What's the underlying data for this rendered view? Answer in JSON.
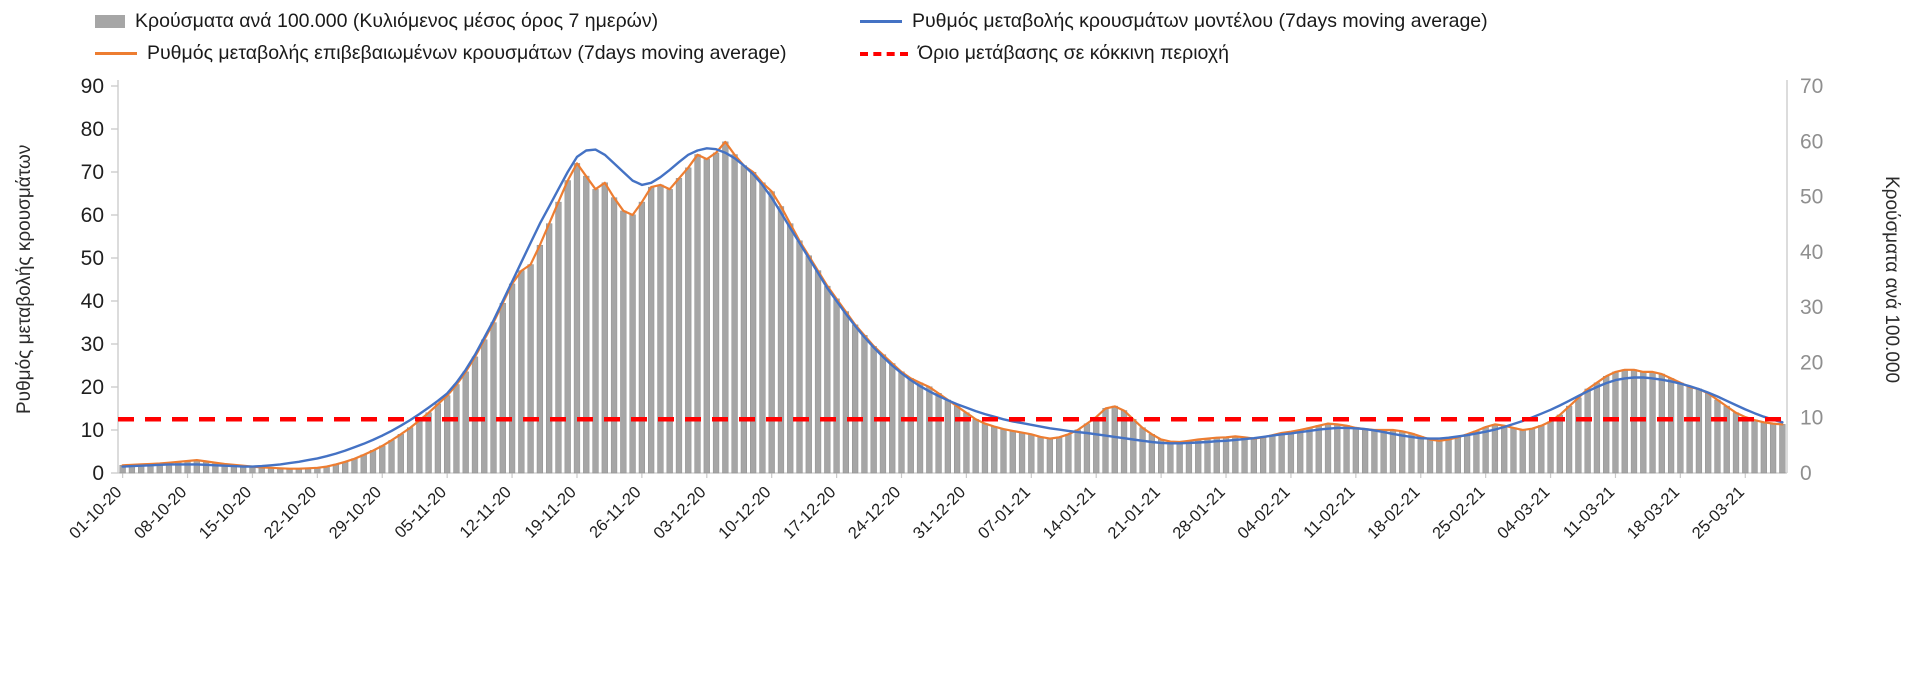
{
  "page": {
    "background": "#ffffff"
  },
  "chart_data": {
    "type": "bar",
    "grid": false,
    "legend_position": "top",
    "n_points": 180,
    "x_start_label": "01-10-20",
    "x_tick_every_days": 7,
    "x_tick_labels": [
      "01-10-20",
      "08-10-20",
      "15-10-20",
      "22-10-20",
      "29-10-20",
      "05-11-20",
      "12-11-20",
      "19-11-20",
      "26-11-20",
      "03-12-20",
      "10-12-20",
      "17-12-20",
      "24-12-20",
      "31-12-20",
      "07-01-21",
      "14-01-21",
      "21-01-21",
      "28-01-21",
      "04-02-21",
      "11-02-21",
      "18-02-21",
      "25-02-21",
      "04-03-21",
      "11-03-21",
      "18-03-21",
      "25-03-21"
    ],
    "left_axis": {
      "title": "Ρυθμός μεταβολής κρουσμάτων",
      "min": 0,
      "max": 90,
      "ticks": [
        0,
        10,
        20,
        30,
        40,
        50,
        60,
        70,
        80,
        90
      ]
    },
    "right_axis": {
      "title": "Κρούσματα ανά 100.000",
      "min": 0,
      "max": 70,
      "ticks": [
        0,
        10,
        20,
        30,
        40,
        50,
        60,
        70
      ]
    },
    "series": [
      {
        "name": "Κρούσματα ανά 100.000 (Κυλιόμενος μέσος όρος 7 ημερών)",
        "kind": "bar",
        "axis": "right",
        "color": "#a6a6a6",
        "values": [
          1.4,
          1.5,
          1.6,
          1.6,
          1.7,
          1.9,
          2.0,
          2.2,
          2.3,
          2.1,
          1.9,
          1.6,
          1.5,
          1.3,
          1.2,
          1.0,
          0.9,
          0.9,
          0.8,
          0.8,
          0.9,
          0.9,
          1.2,
          1.6,
          2.0,
          2.6,
          3.3,
          4.1,
          4.9,
          5.9,
          7.0,
          8.2,
          9.5,
          10.9,
          12.5,
          14.0,
          16.0,
          18.3,
          21.0,
          24.1,
          27.2,
          30.7,
          34.2,
          36.6,
          37.7,
          41.2,
          45.1,
          49.0,
          52.9,
          56.0,
          53.7,
          51.3,
          52.5,
          49.8,
          47.4,
          46.7,
          49.0,
          51.7,
          52.1,
          51.3,
          53.3,
          55.2,
          57.6,
          56.8,
          57.9,
          59.9,
          57.6,
          55.6,
          54.4,
          52.5,
          50.9,
          48.2,
          45.1,
          42.0,
          39.3,
          36.6,
          33.8,
          31.5,
          29.2,
          26.8,
          24.9,
          22.9,
          21.4,
          19.8,
          18.3,
          17.1,
          16.3,
          15.6,
          14.4,
          13.2,
          12.1,
          10.9,
          9.7,
          8.9,
          8.4,
          7.9,
          7.6,
          7.3,
          7.0,
          6.5,
          6.2,
          6.5,
          7.0,
          7.8,
          8.9,
          10.1,
          11.7,
          12.1,
          11.3,
          9.7,
          8.2,
          7.0,
          6.1,
          5.7,
          5.6,
          5.8,
          6.1,
          6.2,
          6.4,
          6.5,
          6.6,
          6.5,
          6.2,
          6.5,
          6.8,
          7.2,
          7.5,
          7.8,
          8.2,
          8.6,
          8.9,
          8.8,
          8.6,
          8.2,
          7.9,
          7.8,
          7.8,
          7.8,
          7.5,
          7.2,
          6.6,
          6.1,
          5.8,
          6.1,
          6.5,
          7.0,
          7.6,
          8.3,
          8.8,
          8.6,
          8.2,
          7.8,
          8.0,
          8.6,
          9.3,
          10.5,
          12.1,
          13.6,
          15.2,
          16.3,
          17.5,
          18.3,
          18.7,
          18.7,
          18.3,
          18.3,
          17.9,
          17.1,
          16.3,
          15.6,
          15.2,
          14.4,
          13.2,
          12.1,
          10.9,
          10.1,
          9.6,
          9.2,
          8.9,
          8.8
        ]
      },
      {
        "name": "Ρυθμός μεταβολής επιβεβαιωμένων κρουσμάτων (7days moving average)",
        "kind": "line",
        "axis": "left",
        "color": "#ed7d31",
        "values": [
          1.8,
          1.9,
          2.0,
          2.1,
          2.2,
          2.4,
          2.6,
          2.8,
          3.0,
          2.7,
          2.4,
          2.1,
          1.9,
          1.7,
          1.5,
          1.3,
          1.2,
          1.1,
          1.0,
          1.0,
          1.1,
          1.2,
          1.5,
          2.0,
          2.6,
          3.3,
          4.2,
          5.2,
          6.3,
          7.6,
          9.0,
          10.5,
          12.2,
          14.0,
          16.0,
          18.0,
          20.5,
          23.5,
          27.0,
          31.0,
          35.0,
          39.5,
          44.0,
          47.0,
          48.5,
          53.0,
          58.0,
          63.0,
          68.0,
          72.0,
          69.0,
          66.0,
          67.5,
          64.0,
          61.0,
          60.0,
          63.0,
          66.5,
          67.0,
          66.0,
          68.5,
          71.0,
          74.0,
          73.0,
          74.5,
          77.0,
          74.0,
          71.5,
          70.0,
          67.5,
          65.5,
          62.0,
          58.0,
          54.0,
          50.5,
          47.0,
          43.5,
          40.5,
          37.5,
          34.5,
          32.0,
          29.5,
          27.5,
          25.5,
          23.5,
          22.0,
          21.0,
          20.0,
          18.5,
          17.0,
          15.5,
          14.0,
          12.5,
          11.5,
          10.8,
          10.2,
          9.8,
          9.4,
          9.0,
          8.4,
          8.0,
          8.3,
          9.0,
          10.0,
          11.5,
          13.0,
          15.0,
          15.5,
          14.5,
          12.5,
          10.5,
          9.0,
          7.8,
          7.3,
          7.2,
          7.5,
          7.8,
          8.0,
          8.2,
          8.3,
          8.5,
          8.3,
          8.0,
          8.3,
          8.8,
          9.3,
          9.6,
          10.0,
          10.5,
          11.0,
          11.5,
          11.3,
          11.0,
          10.5,
          10.2,
          10.0,
          10.0,
          10.0,
          9.7,
          9.2,
          8.5,
          7.8,
          7.5,
          7.8,
          8.3,
          9.0,
          9.8,
          10.7,
          11.3,
          11.0,
          10.5,
          10.0,
          10.3,
          11.0,
          12.0,
          13.5,
          15.5,
          17.5,
          19.5,
          21.0,
          22.5,
          23.5,
          24.0,
          24.0,
          23.5,
          23.5,
          23.0,
          22.0,
          21.0,
          20.0,
          19.5,
          18.5,
          17.0,
          15.5,
          14.0,
          13.0,
          12.3,
          11.8,
          11.5,
          11.3
        ]
      },
      {
        "name": "Ρυθμός μεταβολής κρουσμάτων μοντέλου (7days moving average)",
        "kind": "line",
        "axis": "left",
        "color": "#4472c4",
        "values": [
          1.5,
          1.6,
          1.7,
          1.8,
          1.9,
          2.0,
          2.0,
          2.0,
          2.0,
          1.9,
          1.8,
          1.7,
          1.6,
          1.5,
          1.5,
          1.6,
          1.8,
          2.0,
          2.3,
          2.6,
          3.0,
          3.4,
          3.9,
          4.5,
          5.2,
          6.0,
          6.8,
          7.7,
          8.7,
          9.8,
          11.0,
          12.3,
          13.7,
          15.2,
          16.8,
          18.5,
          21.0,
          24.0,
          27.5,
          31.5,
          35.5,
          40.0,
          44.5,
          49.0,
          53.5,
          58.0,
          62.0,
          66.0,
          70.0,
          73.5,
          75.0,
          75.2,
          74.0,
          72.0,
          70.0,
          68.0,
          67.0,
          67.5,
          68.8,
          70.5,
          72.3,
          74.0,
          75.0,
          75.5,
          75.3,
          74.5,
          73.2,
          71.5,
          69.5,
          67.0,
          64.0,
          60.5,
          57.0,
          53.5,
          50.0,
          46.5,
          43.0,
          40.0,
          37.0,
          34.2,
          31.6,
          29.2,
          27.0,
          25.0,
          23.2,
          21.6,
          20.2,
          19.0,
          17.9,
          16.9,
          16.0,
          15.2,
          14.4,
          13.7,
          13.1,
          12.5,
          12.0,
          11.6,
          11.2,
          10.8,
          10.4,
          10.1,
          9.8,
          9.5,
          9.3,
          9.0,
          8.7,
          8.4,
          8.1,
          7.8,
          7.5,
          7.2,
          7.0,
          6.9,
          6.9,
          7.0,
          7.1,
          7.2,
          7.4,
          7.5,
          7.7,
          7.9,
          8.1,
          8.4,
          8.7,
          9.0,
          9.2,
          9.5,
          9.8,
          10.1,
          10.3,
          10.5,
          10.5,
          10.4,
          10.2,
          9.9,
          9.5,
          9.1,
          8.7,
          8.4,
          8.1,
          8.0,
          8.0,
          8.2,
          8.5,
          8.8,
          9.2,
          9.6,
          10.1,
          10.7,
          11.4,
          12.1,
          12.9,
          13.8,
          14.7,
          15.7,
          16.8,
          17.9,
          19.0,
          20.0,
          20.9,
          21.6,
          22.0,
          22.2,
          22.2,
          22.0,
          21.7,
          21.3,
          20.8,
          20.2,
          19.5,
          18.7,
          17.8,
          16.8,
          15.8,
          14.8,
          13.9,
          13.1,
          12.4,
          11.8
        ]
      },
      {
        "name": "Όριο μετάβασης σε κόκκινη περιοχή",
        "kind": "threshold",
        "axis": "left",
        "color": "#ff0000",
        "value": 12.5
      }
    ],
    "legend": [
      {
        "label": "Κρούσματα ανά 100.000 (Κυλιόμενος μέσος όρος 7 ημερών)",
        "swatch": "bar",
        "color": "#a6a6a6"
      },
      {
        "label": "Ρυθμός μεταβολής κρουσμάτων μοντέλου (7days moving average)",
        "swatch": "line",
        "color": "#4472c4"
      },
      {
        "label": "Ρυθμός μεταβολής επιβεβαιωμένων κρουσμάτων (7days moving average)",
        "swatch": "line",
        "color": "#ed7d31"
      },
      {
        "label": "Όριο μετάβασης σε κόκκινη περιοχή",
        "swatch": "dashed-line",
        "color": "#ff0000"
      }
    ]
  }
}
